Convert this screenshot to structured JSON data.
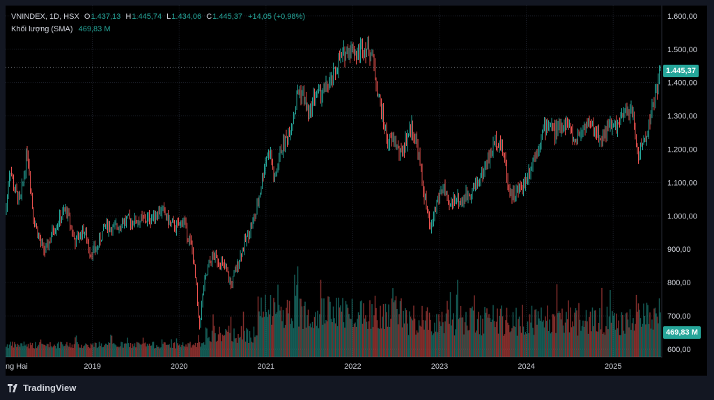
{
  "app": {
    "brand": "TradingView"
  },
  "legend": {
    "symbol": "VNINDEX, 1D, HSX",
    "o_label": "O",
    "o": "1.437,13",
    "h_label": "H",
    "h": "1.445,74",
    "l_label": "L",
    "l": "1.434,06",
    "c_label": "C",
    "c": "1.445,37",
    "change": "+14,05 (+0,98%)",
    "volume_label": "Khối lượng (SMA)",
    "volume_value": "469,83 M"
  },
  "price_tag": "1.445,37",
  "volume_tag": "469,83 M",
  "colors": {
    "up": "#26a69a",
    "down": "#ef5350",
    "background": "#000000",
    "panel": "#131722",
    "grid": "#1e222d"
  },
  "chart_data": {
    "type": "candlestick",
    "title": "",
    "y_axis": {
      "ticks": [
        "1.600,00",
        "1.500,00",
        "1.400,00",
        "1.300,00",
        "1.200,00",
        "1.100,00",
        "1.000,00",
        "900,00",
        "800,00",
        "700,00",
        "600,00"
      ],
      "tick_values": [
        1600,
        1500,
        1400,
        1300,
        1200,
        1100,
        1000,
        900,
        800,
        700,
        600
      ],
      "ylim": [
        577,
        1631
      ]
    },
    "x_axis": {
      "ticks": [
        "ng Hai",
        "2019",
        "2020",
        "2021",
        "2022",
        "2023",
        "2024",
        "2025"
      ],
      "tick_dates": [
        2018.08,
        2019.0,
        2020.0,
        2021.0,
        2022.0,
        2023.0,
        2024.0,
        2025.0
      ],
      "xlim": [
        2018.0,
        2025.56
      ]
    },
    "grid": true,
    "last_close": 1445.37,
    "price_path": [
      [
        2018.0,
        1005
      ],
      [
        2018.05,
        1150
      ],
      [
        2018.1,
        1080
      ],
      [
        2018.17,
        1040
      ],
      [
        2018.25,
        1200
      ],
      [
        2018.32,
        1000
      ],
      [
        2018.4,
        920
      ],
      [
        2018.46,
        890
      ],
      [
        2018.55,
        960
      ],
      [
        2018.7,
        1020
      ],
      [
        2018.8,
        920
      ],
      [
        2018.9,
        960
      ],
      [
        2018.98,
        890
      ],
      [
        2019.05,
        900
      ],
      [
        2019.15,
        975
      ],
      [
        2019.25,
        960
      ],
      [
        2019.35,
        985
      ],
      [
        2019.5,
        985
      ],
      [
        2019.65,
        990
      ],
      [
        2019.8,
        1020
      ],
      [
        2019.9,
        975
      ],
      [
        2019.98,
        965
      ],
      [
        2020.05,
        990
      ],
      [
        2020.1,
        940
      ],
      [
        2020.15,
        900
      ],
      [
        2020.2,
        780
      ],
      [
        2020.23,
        660
      ],
      [
        2020.28,
        780
      ],
      [
        2020.35,
        860
      ],
      [
        2020.4,
        880
      ],
      [
        2020.48,
        860
      ],
      [
        2020.55,
        830
      ],
      [
        2020.6,
        790
      ],
      [
        2020.7,
        880
      ],
      [
        2020.8,
        950
      ],
      [
        2020.88,
        1000
      ],
      [
        2020.95,
        1100
      ],
      [
        2021.0,
        1180
      ],
      [
        2021.05,
        1190
      ],
      [
        2021.1,
        1100
      ],
      [
        2021.17,
        1200
      ],
      [
        2021.25,
        1240
      ],
      [
        2021.32,
        1300
      ],
      [
        2021.37,
        1380
      ],
      [
        2021.43,
        1360
      ],
      [
        2021.5,
        1300
      ],
      [
        2021.55,
        1360
      ],
      [
        2021.65,
        1370
      ],
      [
        2021.75,
        1400
      ],
      [
        2021.85,
        1470
      ],
      [
        2021.95,
        1500
      ],
      [
        2022.0,
        1505
      ],
      [
        2022.05,
        1480
      ],
      [
        2022.1,
        1510
      ],
      [
        2022.18,
        1500
      ],
      [
        2022.22,
        1490
      ],
      [
        2022.28,
        1380
      ],
      [
        2022.35,
        1290
      ],
      [
        2022.4,
        1220
      ],
      [
        2022.48,
        1230
      ],
      [
        2022.55,
        1180
      ],
      [
        2022.63,
        1240
      ],
      [
        2022.68,
        1270
      ],
      [
        2022.75,
        1200
      ],
      [
        2022.8,
        1100
      ],
      [
        2022.85,
        1020
      ],
      [
        2022.9,
        950
      ],
      [
        2022.93,
        1000
      ],
      [
        2022.98,
        1050
      ],
      [
        2023.05,
        1090
      ],
      [
        2023.1,
        1020
      ],
      [
        2023.18,
        1060
      ],
      [
        2023.25,
        1040
      ],
      [
        2023.3,
        1060
      ],
      [
        2023.38,
        1080
      ],
      [
        2023.48,
        1120
      ],
      [
        2023.58,
        1180
      ],
      [
        2023.65,
        1230
      ],
      [
        2023.7,
        1220
      ],
      [
        2023.75,
        1170
      ],
      [
        2023.8,
        1080
      ],
      [
        2023.85,
        1060
      ],
      [
        2023.92,
        1080
      ],
      [
        2023.98,
        1100
      ],
      [
        2024.05,
        1150
      ],
      [
        2024.12,
        1200
      ],
      [
        2024.2,
        1260
      ],
      [
        2024.27,
        1280
      ],
      [
        2024.33,
        1250
      ],
      [
        2024.4,
        1270
      ],
      [
        2024.48,
        1280
      ],
      [
        2024.55,
        1220
      ],
      [
        2024.62,
        1250
      ],
      [
        2024.7,
        1280
      ],
      [
        2024.78,
        1260
      ],
      [
        2024.85,
        1230
      ],
      [
        2024.92,
        1260
      ],
      [
        2024.98,
        1270
      ],
      [
        2025.05,
        1270
      ],
      [
        2025.12,
        1300
      ],
      [
        2025.18,
        1320
      ],
      [
        2025.23,
        1300
      ],
      [
        2025.27,
        1210
      ],
      [
        2025.29,
        1180
      ],
      [
        2025.33,
        1210
      ],
      [
        2025.38,
        1240
      ],
      [
        2025.44,
        1310
      ],
      [
        2025.5,
        1380
      ],
      [
        2025.55,
        1445
      ]
    ],
    "volume_note": "volume histogram at the bottom of the price pane, shares the pane with price"
  }
}
